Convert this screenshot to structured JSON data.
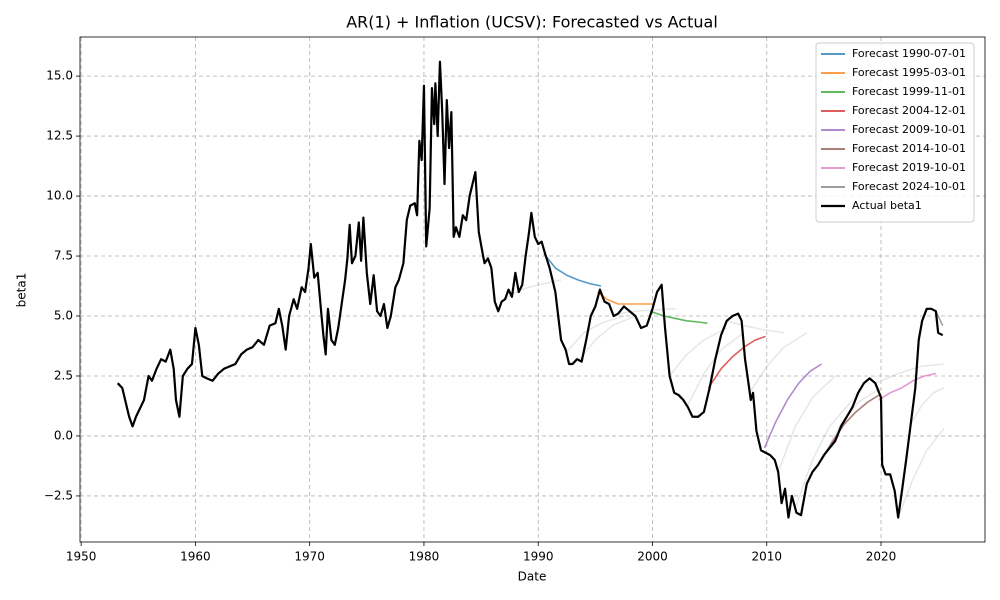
{
  "chart_data": {
    "type": "line",
    "title": "AR(1) + Inflation (UCSV): Forecasted vs Actual",
    "x_label": "Date",
    "y_label": "beta1",
    "xlim": [
      1949.9,
      2029.1
    ],
    "ylim": [
      -4.42,
      16.63
    ],
    "xticks": [
      1950,
      1960,
      1970,
      1980,
      1990,
      2000,
      2010,
      2020
    ],
    "yticks": [
      {
        "value": -2.5,
        "label": "−2.5"
      },
      {
        "value": 0,
        "label": "0.0"
      },
      2.5,
      {
        "value": 5,
        "label": "5.0"
      },
      7.5,
      {
        "value": 10,
        "label": "10.0"
      },
      12.5,
      {
        "value": 15,
        "label": "15.0"
      }
    ],
    "grid": true,
    "legend": "upper right",
    "background_series": [
      {
        "color": "#a0a0a0",
        "x": [
          1987,
          1988.5,
          1990,
          1992
        ],
        "values": [
          5.7,
          6.1,
          6.3,
          6.5
        ]
      },
      {
        "color": "#a0a0a0",
        "x": [
          1992.5,
          1994,
          1995.5,
          1997.5
        ],
        "values": [
          3.5,
          4.3,
          4.7,
          5.0
        ]
      },
      {
        "color": "#a0a0a0",
        "x": [
          1993.5,
          1995,
          1996.5,
          1998.5
        ],
        "values": [
          3.1,
          4.0,
          4.6,
          5.0
        ]
      },
      {
        "color": "#a0a0a0",
        "x": [
          1997,
          1998.5,
          2000,
          2002
        ],
        "values": [
          5.1,
          5.2,
          5.25,
          5.3
        ]
      },
      {
        "color": "#a0a0a0",
        "x": [
          2001.5,
          2003,
          2004.5,
          2006.5
        ],
        "values": [
          2.5,
          3.4,
          4.0,
          4.5
        ]
      },
      {
        "color": "#a0a0a0",
        "x": [
          2003,
          2004.5,
          2006,
          2008
        ],
        "values": [
          1.2,
          2.6,
          3.6,
          4.3
        ]
      },
      {
        "color": "#a0a0a0",
        "x": [
          2006.5,
          2008,
          2009.5,
          2011.5
        ],
        "values": [
          4.8,
          4.6,
          4.45,
          4.3
        ]
      },
      {
        "color": "#a0a0a0",
        "x": [
          2008.5,
          2010,
          2011.5,
          2013.5
        ],
        "values": [
          1.8,
          2.9,
          3.7,
          4.3
        ]
      },
      {
        "color": "#a0a0a0",
        "x": [
          2011,
          2012.5,
          2014,
          2016
        ],
        "values": [
          -1.5,
          0.4,
          1.6,
          2.5
        ]
      },
      {
        "color": "#a0a0a0",
        "x": [
          2012.5,
          2014,
          2015.5,
          2017.5
        ],
        "values": [
          -3.0,
          -1.0,
          0.4,
          1.5
        ]
      },
      {
        "color": "#a0a0a0",
        "x": [
          2015,
          2016.5,
          2018,
          2020
        ],
        "values": [
          -0.8,
          0.5,
          1.4,
          2.0
        ]
      },
      {
        "color": "#a0a0a0",
        "x": [
          2021.5,
          2022.8,
          2024,
          2025.5
        ],
        "values": [
          -3.4,
          -1.8,
          -0.6,
          0.3
        ]
      },
      {
        "color": "#a0a0a0",
        "x": [
          2022.6,
          2023.6,
          2024.6,
          2025.5
        ],
        "values": [
          0.5,
          1.3,
          1.8,
          2.0
        ]
      },
      {
        "color": "#a0a0a0",
        "x": [
          2019.5,
          2021.5,
          2023.5,
          2025.5
        ],
        "values": [
          2.2,
          2.6,
          2.9,
          3.0
        ]
      }
    ],
    "series": [
      {
        "name": "Forecast 1990-07-01",
        "color": "#1f77b4",
        "x": [
          1990.5,
          1991.5,
          1992.5,
          1993.5,
          1994.5,
          1995.5
        ],
        "values": [
          7.6,
          7.0,
          6.7,
          6.5,
          6.35,
          6.25
        ]
      },
      {
        "name": "Forecast 1995-03-01",
        "color": "#ff7f0e",
        "x": [
          1995.2,
          1996,
          1997,
          1998,
          1999,
          2000.2
        ],
        "values": [
          6.0,
          5.7,
          5.5,
          5.5,
          5.5,
          5.5
        ]
      },
      {
        "name": "Forecast 1999-11-01",
        "color": "#2ca02c",
        "x": [
          1999.8,
          2001,
          2002,
          2003,
          2004,
          2004.8
        ],
        "values": [
          5.2,
          5.0,
          4.9,
          4.8,
          4.75,
          4.7
        ]
      },
      {
        "name": "Forecast 2004-12-01",
        "color": "#d62728",
        "x": [
          2004.9,
          2006,
          2007,
          2008,
          2009,
          2009.9
        ],
        "values": [
          2.0,
          2.8,
          3.3,
          3.7,
          4.0,
          4.15
        ]
      },
      {
        "name": "Forecast 2009-10-01",
        "color": "#9467bd",
        "x": [
          2009.8,
          2010.8,
          2011.8,
          2012.8,
          2013.8,
          2014.8
        ],
        "values": [
          -0.5,
          0.6,
          1.5,
          2.2,
          2.7,
          3.0
        ]
      },
      {
        "name": "Forecast 2014-10-01",
        "color": "#8c564b",
        "x": [
          2014.8,
          2015.8,
          2016.8,
          2017.8,
          2018.8,
          2019.8
        ],
        "values": [
          -1.0,
          -0.2,
          0.5,
          1.0,
          1.4,
          1.7
        ]
      },
      {
        "name": "Forecast 2019-10-01",
        "color": "#e377c2",
        "x": [
          2019.8,
          2020.8,
          2021.8,
          2022.8,
          2023.8,
          2024.8
        ],
        "values": [
          1.5,
          1.8,
          2.0,
          2.3,
          2.5,
          2.6
        ]
      },
      {
        "name": "Forecast 2024-10-01",
        "color": "#7f7f7f",
        "x": [
          2024.8,
          2025.1,
          2025.4
        ],
        "values": [
          5.2,
          4.9,
          4.6
        ]
      },
      {
        "name": "Actual beta1",
        "color": "#000000",
        "x": [
          1953.2,
          1953.6,
          1953.9,
          1954.2,
          1954.5,
          1954.8,
          1955.2,
          1955.5,
          1955.9,
          1956.2,
          1956.6,
          1957,
          1957.4,
          1957.8,
          1958.1,
          1958.3,
          1958.6,
          1958.9,
          1959.3,
          1959.7,
          1960,
          1960.3,
          1960.6,
          1961,
          1961.5,
          1962,
          1962.5,
          1963,
          1963.5,
          1964,
          1964.5,
          1965,
          1965.5,
          1966,
          1966.5,
          1967,
          1967.3,
          1967.6,
          1967.9,
          1968.2,
          1968.6,
          1968.9,
          1969.3,
          1969.6,
          1969.9,
          1970.1,
          1970.4,
          1970.7,
          1971,
          1971.2,
          1971.4,
          1971.6,
          1971.9,
          1972.2,
          1972.5,
          1972.8,
          1973.1,
          1973.3,
          1973.5,
          1973.7,
          1974,
          1974.3,
          1974.5,
          1974.7,
          1975,
          1975.3,
          1975.6,
          1975.9,
          1976.2,
          1976.5,
          1976.8,
          1977.1,
          1977.5,
          1977.8,
          1978.2,
          1978.5,
          1978.8,
          1979.2,
          1979.4,
          1979.6,
          1979.8,
          1980,
          1980.2,
          1980.5,
          1980.7,
          1980.9,
          1981,
          1981.2,
          1981.4,
          1981.6,
          1981.8,
          1982,
          1982.2,
          1982.4,
          1982.6,
          1982.8,
          1983.1,
          1983.4,
          1983.7,
          1984,
          1984.3,
          1984.5,
          1984.8,
          1985.1,
          1985.3,
          1985.6,
          1985.9,
          1986.2,
          1986.5,
          1986.8,
          1987.1,
          1987.4,
          1987.7,
          1988,
          1988.3,
          1988.6,
          1988.9,
          1989.2,
          1989.4,
          1989.7,
          1990,
          1990.3,
          1990.6,
          1991,
          1991.5,
          1992,
          1992.4,
          1992.7,
          1993,
          1993.4,
          1993.8,
          1994.2,
          1994.6,
          1995,
          1995.4,
          1995.8,
          1996.2,
          1996.6,
          1997,
          1997.5,
          1998,
          1998.5,
          1999,
          1999.5,
          2000,
          2000.4,
          2000.8,
          2001.1,
          2001.5,
          2001.9,
          2002.3,
          2002.7,
          2003.1,
          2003.5,
          2004,
          2004.5,
          2005,
          2005.5,
          2006,
          2006.5,
          2007,
          2007.5,
          2007.8,
          2008.1,
          2008.4,
          2008.6,
          2008.8,
          2009.1,
          2009.5,
          2009.9,
          2010.3,
          2010.7,
          2011,
          2011.3,
          2011.6,
          2011.9,
          2012.2,
          2012.6,
          2013,
          2013.5,
          2014,
          2014.5,
          2015,
          2015.5,
          2016,
          2016.5,
          2017,
          2017.5,
          2018,
          2018.5,
          2019,
          2019.5,
          2020,
          2020.1,
          2020.4,
          2020.8,
          2021.2,
          2021.5,
          2021.8,
          2022.2,
          2022.6,
          2023,
          2023.3,
          2023.6,
          2024,
          2024.4,
          2024.8,
          2025,
          2025.4
        ],
        "values": [
          2.2,
          2.0,
          1.4,
          0.8,
          0.4,
          0.8,
          1.2,
          1.5,
          2.5,
          2.3,
          2.8,
          3.2,
          3.1,
          3.6,
          2.8,
          1.5,
          0.8,
          2.5,
          2.8,
          3.0,
          4.5,
          3.8,
          2.5,
          2.4,
          2.3,
          2.6,
          2.8,
          2.9,
          3.0,
          3.4,
          3.6,
          3.7,
          4.0,
          3.8,
          4.6,
          4.7,
          5.3,
          4.6,
          3.6,
          5.0,
          5.7,
          5.3,
          6.2,
          6.0,
          7.0,
          8.0,
          6.6,
          6.8,
          5.2,
          4.2,
          3.4,
          5.3,
          4.0,
          3.8,
          4.5,
          5.5,
          6.5,
          7.4,
          8.8,
          7.2,
          7.5,
          8.9,
          7.3,
          9.1,
          6.8,
          5.5,
          6.7,
          5.2,
          5.0,
          5.5,
          4.5,
          5.0,
          6.2,
          6.5,
          7.2,
          9.0,
          9.6,
          9.7,
          9.2,
          12.3,
          11.5,
          14.6,
          7.9,
          9.5,
          14.5,
          13.0,
          14.7,
          12.5,
          15.6,
          13.5,
          10.5,
          14.0,
          12.0,
          13.5,
          8.3,
          8.7,
          8.3,
          9.2,
          9.0,
          10.0,
          10.6,
          11.0,
          8.5,
          7.7,
          7.2,
          7.4,
          7.0,
          5.6,
          5.2,
          5.6,
          5.7,
          6.1,
          5.8,
          6.8,
          6.0,
          6.3,
          7.5,
          8.5,
          9.3,
          8.3,
          8.0,
          8.1,
          7.6,
          7.0,
          6.0,
          4.0,
          3.6,
          3.0,
          3.0,
          3.2,
          3.1,
          4.0,
          5.0,
          5.4,
          6.1,
          5.6,
          5.5,
          5.0,
          5.1,
          5.4,
          5.2,
          5.0,
          4.5,
          4.6,
          5.3,
          6.0,
          6.3,
          4.5,
          2.5,
          1.8,
          1.7,
          1.5,
          1.2,
          0.8,
          0.8,
          1.0,
          2.0,
          3.2,
          4.2,
          4.8,
          5.0,
          5.1,
          4.8,
          3.2,
          2.2,
          1.5,
          1.8,
          0.2,
          -0.6,
          -0.7,
          -0.8,
          -1.0,
          -1.5,
          -2.8,
          -2.2,
          -3.4,
          -2.5,
          -3.2,
          -3.3,
          -2.0,
          -1.5,
          -1.2,
          -0.8,
          -0.5,
          -0.2,
          0.4,
          0.8,
          1.2,
          1.8,
          2.2,
          2.4,
          2.2,
          1.6,
          -1.2,
          -1.6,
          -1.6,
          -2.3,
          -3.4,
          -2.4,
          -1.0,
          0.5,
          2.0,
          4.0,
          4.8,
          5.3,
          5.3,
          5.2,
          4.3,
          4.2
        ]
      }
    ]
  }
}
